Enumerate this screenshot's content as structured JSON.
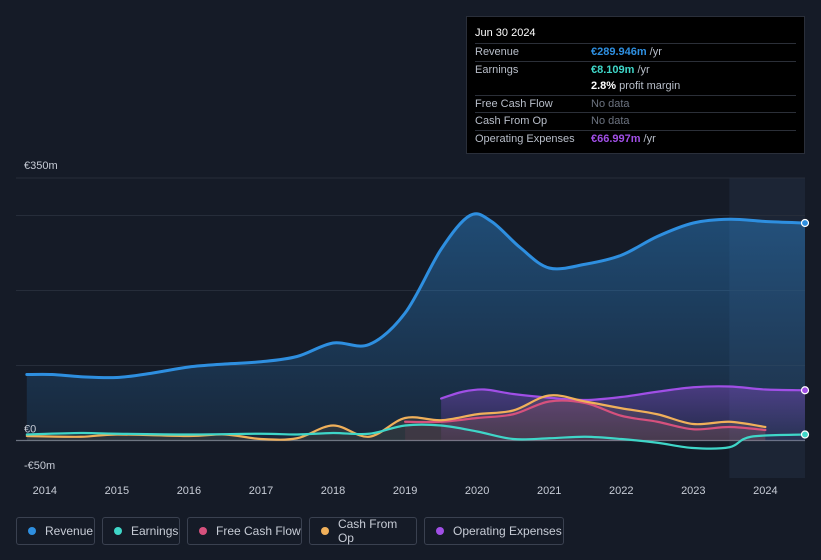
{
  "chart_data": {
    "type": "area",
    "currency_unit": "€m",
    "ylim": [
      -50,
      350
    ],
    "y_tick_labels": [
      {
        "value": 350,
        "label": "€350m"
      },
      {
        "value": 0,
        "label": "€0"
      },
      {
        "value": -50,
        "label": "-€50m"
      }
    ],
    "gridlines": [
      350,
      300,
      200,
      100,
      0
    ],
    "xlim": [
      2013.6,
      2024.55
    ],
    "x_ticks": [
      2014,
      2015,
      2016,
      2017,
      2018,
      2019,
      2020,
      2021,
      2022,
      2023,
      2024
    ],
    "highlight_from": 2023.5,
    "series": [
      {
        "key": "revenue",
        "name": "Revenue",
        "color": "#2e8fe0",
        "fill": true,
        "points": [
          [
            2013.75,
            88
          ],
          [
            2014.1,
            88
          ],
          [
            2014.5,
            85
          ],
          [
            2015,
            84
          ],
          [
            2015.5,
            90
          ],
          [
            2016,
            98
          ],
          [
            2016.5,
            102
          ],
          [
            2017,
            105
          ],
          [
            2017.5,
            112
          ],
          [
            2018,
            130
          ],
          [
            2018.5,
            128
          ],
          [
            2019,
            170
          ],
          [
            2019.5,
            255
          ],
          [
            2019.9,
            300
          ],
          [
            2020.2,
            292
          ],
          [
            2020.6,
            257
          ],
          [
            2021,
            230
          ],
          [
            2021.5,
            235
          ],
          [
            2022,
            247
          ],
          [
            2022.5,
            272
          ],
          [
            2023,
            290
          ],
          [
            2023.5,
            295
          ],
          [
            2024,
            292
          ],
          [
            2024.55,
            290
          ]
        ]
      },
      {
        "key": "earnings",
        "name": "Earnings",
        "color": "#3fd6c8",
        "fill": false,
        "points": [
          [
            2013.75,
            8
          ],
          [
            2014.5,
            10
          ],
          [
            2015,
            9
          ],
          [
            2016,
            8
          ],
          [
            2017,
            9
          ],
          [
            2017.5,
            8
          ],
          [
            2018,
            10
          ],
          [
            2018.5,
            9
          ],
          [
            2019,
            20
          ],
          [
            2019.5,
            20
          ],
          [
            2020,
            12
          ],
          [
            2020.5,
            2
          ],
          [
            2021,
            3
          ],
          [
            2021.5,
            5
          ],
          [
            2022,
            2
          ],
          [
            2022.5,
            -3
          ],
          [
            2023,
            -10
          ],
          [
            2023.5,
            -9
          ],
          [
            2023.8,
            5
          ],
          [
            2024.55,
            8
          ]
        ]
      },
      {
        "key": "free_cash_flow",
        "name": "Free Cash Flow",
        "color": "#d6517d",
        "fill": false,
        "points": [
          [
            2019,
            25
          ],
          [
            2019.5,
            25
          ],
          [
            2020,
            30
          ],
          [
            2020.5,
            35
          ],
          [
            2021,
            52
          ],
          [
            2021.5,
            50
          ],
          [
            2022,
            33
          ],
          [
            2022.5,
            25
          ],
          [
            2023,
            15
          ],
          [
            2023.5,
            18
          ],
          [
            2024,
            14
          ]
        ]
      },
      {
        "key": "cash_from_op",
        "name": "Cash From Op",
        "color": "#f0b05a",
        "fill": false,
        "points": [
          [
            2013.75,
            6
          ],
          [
            2014.5,
            5
          ],
          [
            2015,
            8
          ],
          [
            2016,
            6
          ],
          [
            2016.5,
            8
          ],
          [
            2017,
            2
          ],
          [
            2017.5,
            3
          ],
          [
            2018,
            20
          ],
          [
            2018.5,
            5
          ],
          [
            2019,
            30
          ],
          [
            2019.5,
            27
          ],
          [
            2020,
            35
          ],
          [
            2020.5,
            40
          ],
          [
            2021,
            60
          ],
          [
            2021.5,
            52
          ],
          [
            2022,
            43
          ],
          [
            2022.5,
            35
          ],
          [
            2023,
            22
          ],
          [
            2023.5,
            25
          ],
          [
            2024,
            18
          ]
        ]
      },
      {
        "key": "operating_expenses",
        "name": "Operating Expenses",
        "color": "#a04fe6",
        "fill": true,
        "points": [
          [
            2019.5,
            56
          ],
          [
            2019.8,
            65
          ],
          [
            2020.1,
            68
          ],
          [
            2020.5,
            62
          ],
          [
            2021,
            57
          ],
          [
            2021.5,
            54
          ],
          [
            2022,
            58
          ],
          [
            2022.5,
            65
          ],
          [
            2023,
            71
          ],
          [
            2023.5,
            72
          ],
          [
            2024,
            68
          ],
          [
            2024.55,
            67
          ]
        ]
      }
    ]
  },
  "tooltip": {
    "date": "Jun 30 2024",
    "rows": [
      {
        "label": "Revenue",
        "value": "€289.946m",
        "unit": "/yr",
        "color": "#2e8fe0"
      },
      {
        "label": "Earnings",
        "value": "€8.109m",
        "unit": "/yr",
        "color": "#3fd6c8"
      },
      {
        "label": "",
        "value": "2.8%",
        "unit": "profit margin",
        "color": "#ffffff"
      },
      {
        "label": "Free Cash Flow",
        "value": "No data",
        "unit": "",
        "color": "nodata"
      },
      {
        "label": "Cash From Op",
        "value": "No data",
        "unit": "",
        "color": "nodata"
      },
      {
        "label": "Operating Expenses",
        "value": "€66.997m",
        "unit": "/yr",
        "color": "#a04fe6"
      }
    ]
  },
  "legend": [
    {
      "label": "Revenue",
      "color": "#2e8fe0"
    },
    {
      "label": "Earnings",
      "color": "#3fd6c8"
    },
    {
      "label": "Free Cash Flow",
      "color": "#d6517d"
    },
    {
      "label": "Cash From Op",
      "color": "#f0b05a"
    },
    {
      "label": "Operating Expenses",
      "color": "#a04fe6"
    }
  ]
}
